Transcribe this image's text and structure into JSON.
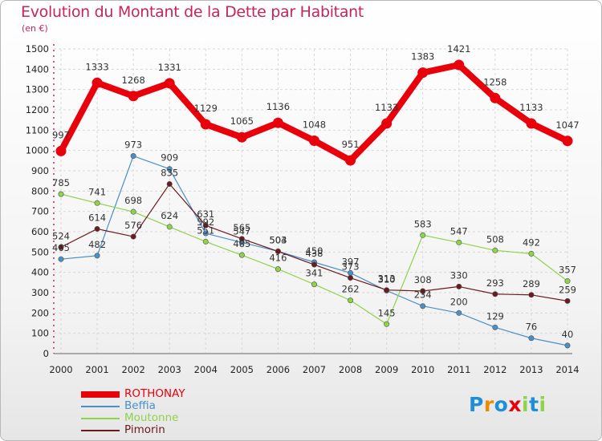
{
  "header": {
    "title": "Evolution du Montant de la Dette par Habitant",
    "subtitle": "(en €)"
  },
  "chart_data": {
    "type": "line",
    "title": "Evolution du Montant de la Dette par Habitant",
    "subtitle": "(en €)",
    "xlabel": "",
    "ylabel": "",
    "x": [
      "2000",
      "2001",
      "2002",
      "2003",
      "2004",
      "2005",
      "2006",
      "2007",
      "2008",
      "2009",
      "2010",
      "2011",
      "2012",
      "2013",
      "2014"
    ],
    "ylim": [
      0,
      1500
    ],
    "yticks": [
      0,
      100,
      200,
      300,
      400,
      500,
      600,
      700,
      800,
      900,
      1000,
      1100,
      1200,
      1300,
      1400,
      1500
    ],
    "grid": true,
    "legend_position": "bottom-left",
    "series": [
      {
        "name": "ROTHONAY",
        "color": "#e8000b",
        "values": [
          997,
          1333,
          1268,
          1331,
          1129,
          1065,
          1136,
          1048,
          951,
          1133,
          1383,
          1421,
          1258,
          1133,
          1047
        ],
        "labels": [
          "997",
          "1333",
          "1268",
          "1331",
          "1129",
          "1065",
          "1136",
          "1048",
          "951",
          "1133",
          "1383",
          "1421",
          "1258",
          "1133",
          "1047"
        ]
      },
      {
        "name": "Beffia",
        "color": "#4a90c6",
        "values": [
          465,
          482,
          973,
          909,
          592,
          547,
          504,
          450,
          397,
          310,
          234,
          200,
          129,
          76,
          40
        ],
        "labels": [
          "465",
          "482",
          "973",
          "909",
          "592",
          "547",
          "504",
          "450",
          "397",
          "310",
          "234",
          "200",
          "129",
          "76",
          "40"
        ]
      },
      {
        "name": "Moutonne",
        "color": "#8ed34a",
        "values": [
          785,
          741,
          698,
          624,
          551,
          485,
          416,
          341,
          262,
          145,
          583,
          547,
          508,
          492,
          357
        ],
        "labels": [
          "785",
          "741",
          "698",
          "624",
          "551",
          "485",
          "416",
          "341",
          "262",
          "145",
          "583",
          "547",
          "508",
          "492",
          "357"
        ]
      },
      {
        "name": "Pimorin",
        "color": "#6b1a1f",
        "values": [
          524,
          614,
          576,
          835,
          631,
          565,
          503,
          438,
          373,
          313,
          308,
          330,
          293,
          289,
          259
        ],
        "labels": [
          "524",
          "614",
          "576",
          "835",
          "631",
          "565",
          "503",
          "438",
          "373",
          "313",
          "308",
          "330",
          "293",
          "289",
          "259"
        ]
      }
    ]
  },
  "logo": {
    "text": "Proxiti",
    "letters": [
      {
        "ch": "P",
        "color": "#1e8fd6"
      },
      {
        "ch": "r",
        "color": "#f08a00"
      },
      {
        "ch": "o",
        "color": "#1e8fd6"
      },
      {
        "ch": "x",
        "color": "#e8000b"
      },
      {
        "ch": "i",
        "color": "#8ed34a"
      },
      {
        "ch": "t",
        "color": "#1e8fd6"
      },
      {
        "ch": "i",
        "color": "#8ed34a"
      }
    ]
  }
}
